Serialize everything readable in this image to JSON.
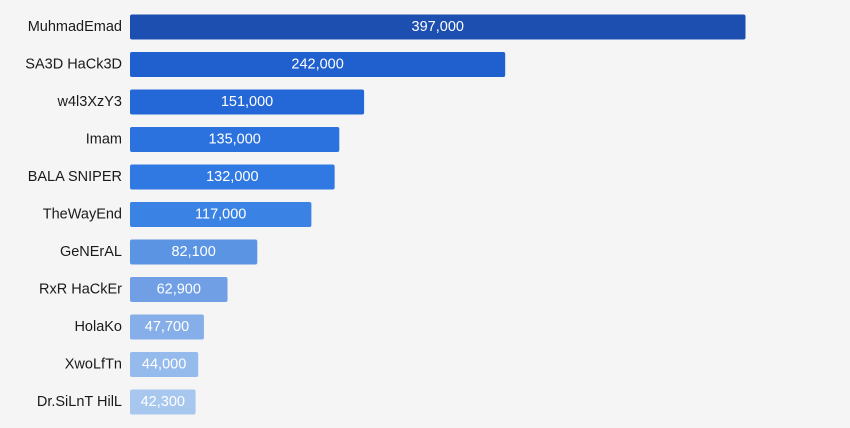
{
  "chart_data": {
    "type": "bar",
    "orientation": "horizontal",
    "categories": [
      "MuhmadEmad",
      "SA3D HaCk3D",
      "w4l3XzY3",
      "Imam",
      "BALA SNIPER",
      "TheWayEnd",
      "GeNErAL",
      "RxR HaCkEr",
      "HolaKo",
      "XwoLfTn",
      "Dr.SiLnT HilL"
    ],
    "values": [
      397000,
      242000,
      151000,
      135000,
      132000,
      117000,
      82100,
      62900,
      47700,
      44000,
      42300
    ],
    "value_labels": [
      "397,000",
      "242,000",
      "151,000",
      "135,000",
      "132,000",
      "117,000",
      "82,100",
      "62,900",
      "47,700",
      "44,000",
      "42,300"
    ],
    "bar_colors": [
      "#1d4fb0",
      "#1f5fce",
      "#2468d8",
      "#2c72df",
      "#3179e2",
      "#3a82e4",
      "#5b94e3",
      "#709fe5",
      "#86afe9",
      "#95bbec",
      "#a8c7ef"
    ],
    "xlim": [
      0,
      400000
    ],
    "grid": false,
    "legend": "none"
  }
}
